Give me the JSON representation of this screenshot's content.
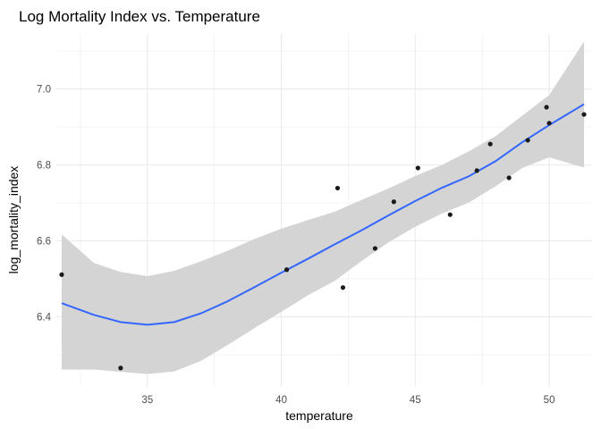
{
  "chart_data": {
    "type": "scatter",
    "title": "Log Mortality Index vs. Temperature",
    "xlabel": "temperature",
    "ylabel": "log_mortality_index",
    "xlim": [
      31.6,
      51.6
    ],
    "ylim": [
      6.215,
      7.145
    ],
    "x_ticks": [
      35,
      40,
      45,
      50
    ],
    "x_tick_labels": [
      "35",
      "40",
      "45",
      "50"
    ],
    "y_ticks": [
      6.4,
      6.6,
      6.8,
      7.0
    ],
    "y_tick_labels": [
      "6.4",
      "6.6",
      "6.8",
      "7.0"
    ],
    "grid": true,
    "legend": "none",
    "points": [
      {
        "x": 31.8,
        "y": 6.511
      },
      {
        "x": 34.0,
        "y": 6.265
      },
      {
        "x": 40.2,
        "y": 6.524
      },
      {
        "x": 42.1,
        "y": 6.739
      },
      {
        "x": 42.3,
        "y": 6.477
      },
      {
        "x": 43.5,
        "y": 6.58
      },
      {
        "x": 44.2,
        "y": 6.703
      },
      {
        "x": 45.1,
        "y": 6.792
      },
      {
        "x": 46.3,
        "y": 6.669
      },
      {
        "x": 47.3,
        "y": 6.785
      },
      {
        "x": 47.8,
        "y": 6.855
      },
      {
        "x": 48.5,
        "y": 6.766
      },
      {
        "x": 49.2,
        "y": 6.865
      },
      {
        "x": 49.9,
        "y": 6.952
      },
      {
        "x": 50.0,
        "y": 6.91
      },
      {
        "x": 51.3,
        "y": 6.933
      }
    ],
    "smooth": {
      "method": "loess",
      "x": [
        31.8,
        33,
        34,
        35,
        36,
        37,
        38,
        39,
        40,
        41,
        42,
        43,
        44,
        45,
        46,
        47,
        48,
        49,
        50,
        51.3
      ],
      "y": [
        6.436,
        6.405,
        6.386,
        6.379,
        6.386,
        6.409,
        6.441,
        6.478,
        6.516,
        6.553,
        6.591,
        6.628,
        6.667,
        6.705,
        6.74,
        6.77,
        6.81,
        6.86,
        6.905,
        6.96
      ],
      "lower": [
        6.261,
        6.261,
        6.255,
        6.249,
        6.256,
        6.284,
        6.326,
        6.37,
        6.413,
        6.457,
        6.495,
        6.547,
        6.596,
        6.637,
        6.672,
        6.701,
        6.744,
        6.792,
        6.82,
        6.793
      ],
      "upper": [
        6.617,
        6.542,
        6.518,
        6.507,
        6.521,
        6.546,
        6.574,
        6.605,
        6.632,
        6.655,
        6.677,
        6.708,
        6.738,
        6.771,
        6.8,
        6.836,
        6.876,
        6.93,
        6.984,
        7.125
      ]
    },
    "colors": {
      "point": "#1a1a1a",
      "smooth_line": "#3366ff",
      "ribbon": "#d4d4d4",
      "grid": "#ebebeb",
      "background": "#ffffff"
    }
  }
}
